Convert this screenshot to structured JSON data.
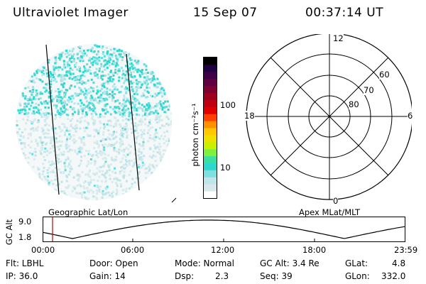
{
  "header": {
    "instrument": "Ultraviolet Imager",
    "date": "15 Sep 07",
    "time": "00:37:14 UT"
  },
  "colorbar": {
    "unit_label": "photon cm⁻²s⁻¹",
    "tick_labels": [
      "100",
      "10"
    ],
    "colors": [
      "#ffffff",
      "#d8e8ea",
      "#bfe5ea",
      "#7fe0e2",
      "#2fd8cf",
      "#39e0a0",
      "#7ff040",
      "#c8f000",
      "#f0e000",
      "#ffc800",
      "#ff9000",
      "#ff4000",
      "#e00000",
      "#c00010",
      "#a00020",
      "#800030",
      "#600040",
      "#400048",
      "#200040",
      "#000000"
    ]
  },
  "polar": {
    "labels": {
      "top": "12",
      "bottom": "0",
      "left": "18",
      "right": "6",
      "ring60": "60",
      "ring70": "70",
      "ring80": "80"
    }
  },
  "coord_labels": {
    "left": "Geographic Lat/Lon",
    "right": "Apex MLat/MLT"
  },
  "altitude_plot": {
    "y_label": "GC Alt",
    "y_ticks": [
      "9.0",
      "1.8"
    ],
    "x_ticks": [
      "00:00",
      "06:00",
      "12:00",
      "18:00",
      "23:59"
    ],
    "marker_color": "#c00000"
  },
  "info": {
    "flt": "Flt: LBHL",
    "ip": "IP: 36.0",
    "door": "Door: Open",
    "gain": "Gain: 14",
    "mode": "Mode: Normal",
    "dsp_label": "Dsp:",
    "dsp_value": "2.3",
    "gc_alt": "GC Alt: 3.4 Re",
    "seq": "Seq: 39",
    "glat_label": "GLat:",
    "glat_value": "4.8",
    "glon_label": "GLon:",
    "glon_value": "332.0"
  }
}
